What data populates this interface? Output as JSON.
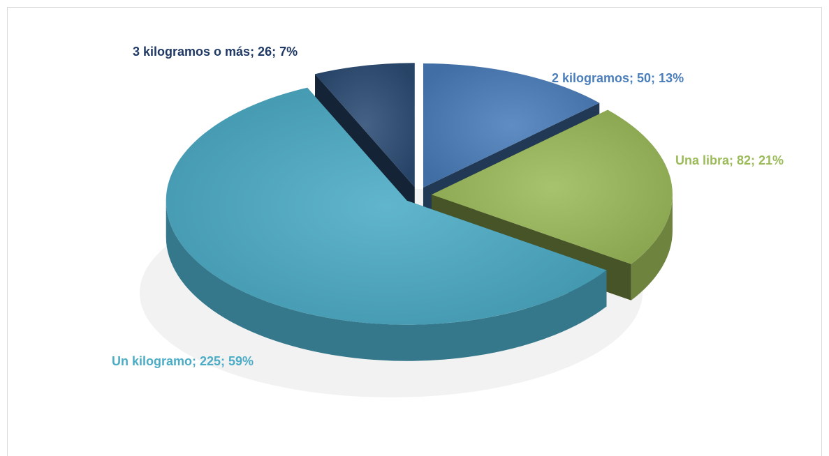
{
  "chart_data": {
    "type": "pie",
    "categories": [
      "2 kilogramos",
      "Una libra",
      "Un kilogramo",
      "3 kilogramos o más"
    ],
    "values": [
      50,
      82,
      225,
      26
    ],
    "value_labels": [
      "2 kilogramos; 50; 13%",
      "Una libra; 82; 21%",
      "Un kilogramo; 225; 59%",
      "3 kilogramos o más; 26; 7%"
    ],
    "colors": [
      "#4a7ebb",
      "#9bbb59",
      "#4bacc6",
      "#2c4d75"
    ],
    "label_colors": [
      "#4a7ebb",
      "#9bbb59",
      "#4bacc6",
      "#1f3864"
    ]
  }
}
